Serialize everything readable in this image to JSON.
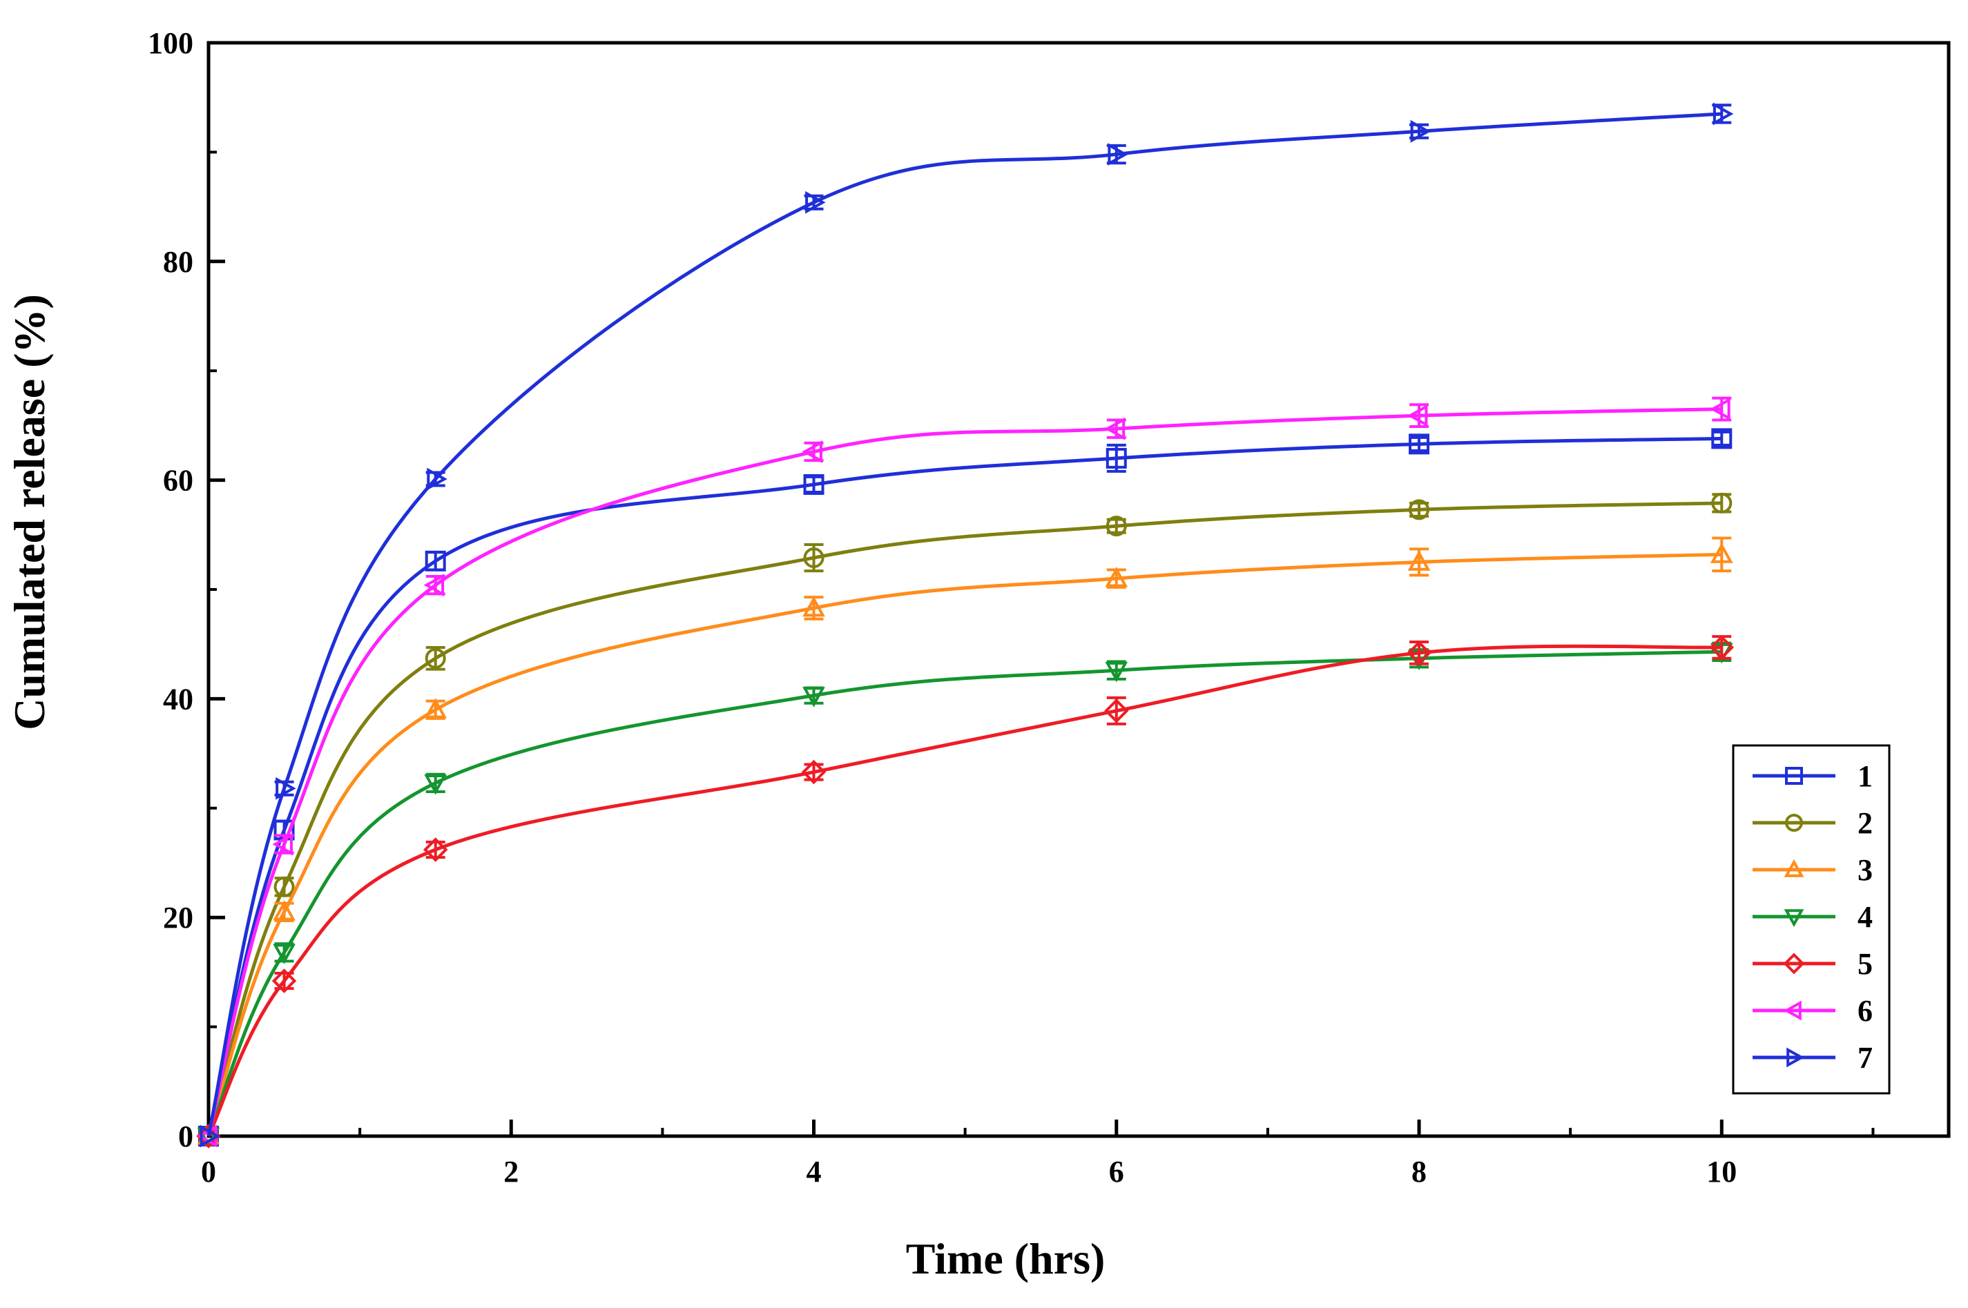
{
  "chart_data": {
    "type": "line",
    "title": "",
    "xlabel": "Time (hrs)",
    "ylabel": "Cumulated release (%)",
    "xlim": [
      0,
      11.5
    ],
    "ylim": [
      0,
      100
    ],
    "xticks": [
      0,
      2,
      4,
      6,
      8,
      10
    ],
    "yticks": [
      0,
      20,
      40,
      60,
      80,
      100
    ],
    "x_minor_ticks": [
      1,
      3,
      5,
      7,
      9,
      11
    ],
    "y_minor_ticks": [
      10,
      30,
      50,
      70,
      90
    ],
    "xtick_labels": [
      "0",
      "2",
      "4",
      "6",
      "8",
      "10"
    ],
    "ytick_labels": [
      "0",
      "20",
      "40",
      "60",
      "80",
      "100"
    ],
    "grid": false,
    "legend_position": "bottom-right",
    "x": [
      0,
      0.5,
      1.5,
      4,
      6,
      8,
      10
    ],
    "series": [
      {
        "name": "1",
        "marker": "square",
        "color": "#1f2fd8",
        "values": [
          0,
          28.0,
          52.6,
          59.6,
          62.0,
          63.3,
          63.8
        ],
        "errors": [
          0,
          0.8,
          0.8,
          0.7,
          1.2,
          0.6,
          0.6
        ]
      },
      {
        "name": "2",
        "marker": "circle",
        "color": "#7f7f0f",
        "values": [
          0,
          22.8,
          43.7,
          52.9,
          55.8,
          57.3,
          57.9
        ],
        "errors": [
          0,
          0.8,
          1.0,
          1.2,
          0.6,
          0.6,
          0.8
        ]
      },
      {
        "name": "3",
        "marker": "triangle-up",
        "color": "#ff8c1a",
        "values": [
          0,
          20.5,
          39.0,
          48.3,
          51.0,
          52.5,
          53.2
        ],
        "errors": [
          0,
          0.8,
          0.8,
          1.0,
          0.8,
          1.2,
          1.5
        ]
      },
      {
        "name": "4",
        "marker": "triangle-down",
        "color": "#13952f",
        "values": [
          0,
          16.8,
          32.3,
          40.3,
          42.6,
          43.7,
          44.3
        ],
        "errors": [
          0,
          0.8,
          0.8,
          0.7,
          0.8,
          0.8,
          0.8
        ]
      },
      {
        "name": "5",
        "marker": "diamond",
        "color": "#ee1c25",
        "values": [
          0,
          14.2,
          26.2,
          33.3,
          38.9,
          44.2,
          44.7
        ],
        "errors": [
          0,
          0.7,
          0.7,
          0.7,
          1.2,
          1.0,
          1.0
        ]
      },
      {
        "name": "6",
        "marker": "triangle-left",
        "color": "#ff22ff",
        "values": [
          0,
          26.7,
          50.4,
          62.6,
          64.7,
          65.9,
          66.5
        ],
        "errors": [
          0,
          0.8,
          0.8,
          0.8,
          0.8,
          1.0,
          1.0
        ]
      },
      {
        "name": "7",
        "marker": "triangle-right",
        "color": "#1f2fd8",
        "values": [
          0,
          31.8,
          60.1,
          85.4,
          89.8,
          91.9,
          93.5
        ],
        "errors": [
          0,
          0.6,
          0.6,
          0.6,
          0.8,
          0.6,
          0.8
        ]
      }
    ]
  }
}
